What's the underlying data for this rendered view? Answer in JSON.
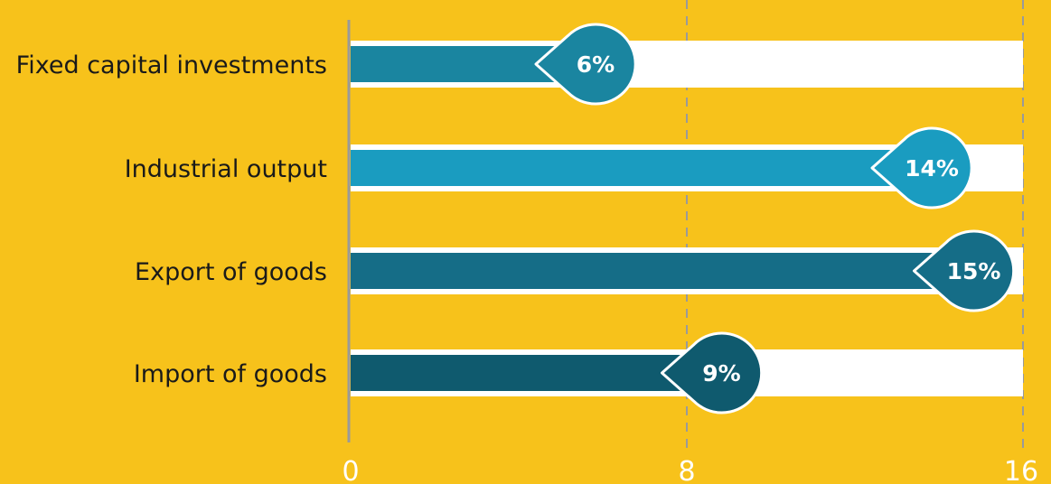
{
  "chart_data": {
    "type": "bar",
    "orientation": "horizontal",
    "categories": [
      "Fixed capital investments",
      "Industrial output",
      "Export of goods",
      "Import of goods"
    ],
    "values": [
      6,
      14,
      15,
      9
    ],
    "value_labels": [
      "6%",
      "14%",
      "15%",
      "9%"
    ],
    "xlim": [
      0,
      16
    ],
    "xticks": [
      0,
      8,
      16
    ],
    "xtick_labels": [
      "0",
      "8",
      "16"
    ],
    "grid": "dashed vertical lines at 8 and 16",
    "colors": {
      "background": "#F7C21B",
      "track": "#FFFFFF",
      "bars": [
        "#1A85A0",
        "#1A9CC0",
        "#156D87",
        "#0F5A6E"
      ],
      "axis": "#9A9A9A",
      "gridline": "#9A9A9A"
    }
  }
}
